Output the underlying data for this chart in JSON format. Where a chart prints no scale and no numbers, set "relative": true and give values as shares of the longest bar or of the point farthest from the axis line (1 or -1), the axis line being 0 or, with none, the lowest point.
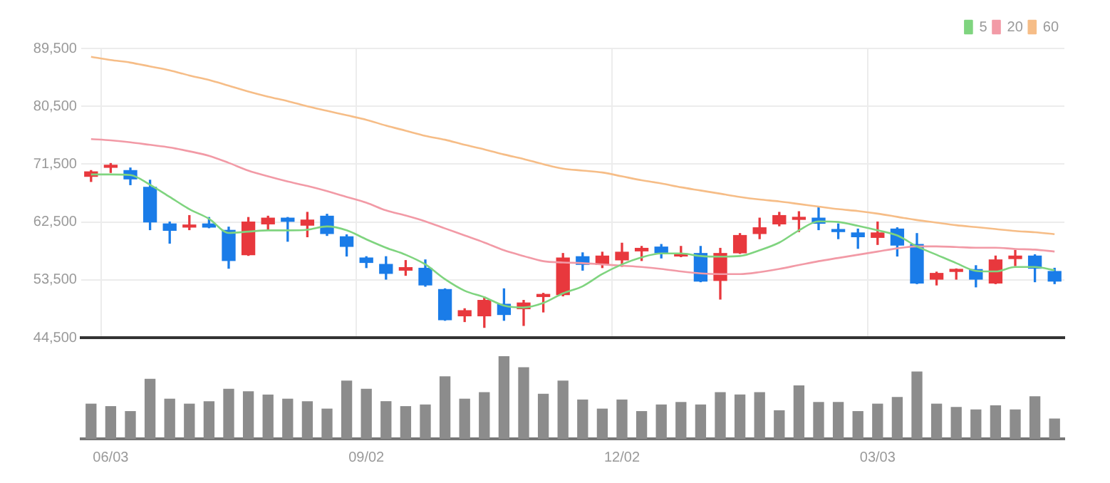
{
  "chart_data": [
    {
      "type": "candlestick",
      "categories": [
        null,
        null,
        null,
        null,
        null,
        null,
        null,
        null,
        null,
        null,
        null,
        null,
        null,
        null,
        null,
        null,
        null,
        null,
        null,
        null,
        null,
        null,
        null,
        null,
        null,
        null,
        null,
        null,
        null,
        null,
        null,
        null,
        null,
        null,
        null,
        null,
        null,
        null,
        null,
        null,
        null,
        null,
        null,
        null,
        null,
        null,
        null,
        null,
        null,
        null
      ],
      "ohlc": [
        [
          69600,
          70500,
          68800,
          70300
        ],
        [
          71000,
          71600,
          70200,
          71300
        ],
        [
          70500,
          70900,
          68300,
          69200
        ],
        [
          67900,
          69000,
          61300,
          62500
        ],
        [
          62200,
          62500,
          59200,
          61200
        ],
        [
          61700,
          63500,
          61300,
          62000
        ],
        [
          62200,
          63200,
          61600,
          61700
        ],
        [
          61200,
          61700,
          55300,
          56500
        ],
        [
          57400,
          63200,
          57300,
          62500
        ],
        [
          62200,
          63400,
          61200,
          63100
        ],
        [
          63100,
          63200,
          59500,
          62600
        ],
        [
          62000,
          64000,
          60200,
          62800
        ],
        [
          63400,
          63700,
          60400,
          60700
        ],
        [
          60200,
          60500,
          57200,
          58700
        ],
        [
          56900,
          57100,
          55400,
          56200
        ],
        [
          55900,
          57100,
          53600,
          54500
        ],
        [
          55000,
          56500,
          54200,
          55400
        ],
        [
          55300,
          56600,
          52500,
          52700
        ],
        [
          52000,
          52100,
          47200,
          47300
        ],
        [
          47900,
          49000,
          47000,
          48700
        ],
        [
          47900,
          50800,
          46100,
          50300
        ],
        [
          49700,
          52100,
          47200,
          48100
        ],
        [
          49000,
          50300,
          46400,
          49900
        ],
        [
          50900,
          51400,
          48500,
          51200
        ],
        [
          51200,
          57600,
          51000,
          56900
        ],
        [
          57100,
          57700,
          55000,
          55900
        ],
        [
          55900,
          57800,
          55400,
          57200
        ],
        [
          56600,
          59200,
          55600,
          57800
        ],
        [
          58000,
          58700,
          56500,
          58400
        ],
        [
          58600,
          59000,
          56900,
          57700
        ],
        [
          57200,
          58700,
          57100,
          57500
        ],
        [
          57600,
          58700,
          53200,
          53300
        ],
        [
          53400,
          58400,
          50500,
          57600
        ],
        [
          57700,
          60700,
          57600,
          60400
        ],
        [
          60700,
          63100,
          59900,
          61600
        ],
        [
          62200,
          64000,
          61900,
          63500
        ],
        [
          62900,
          64100,
          61000,
          63200
        ],
        [
          63100,
          64900,
          61300,
          62300
        ],
        [
          61300,
          62200,
          59900,
          61000
        ],
        [
          60800,
          61400,
          58400,
          60200
        ],
        [
          60100,
          62500,
          59000,
          60800
        ],
        [
          61400,
          61600,
          57200,
          58900
        ],
        [
          59000,
          60700,
          52900,
          53000
        ],
        [
          53600,
          54700,
          52700,
          54500
        ],
        [
          54800,
          55200,
          53600,
          55100
        ],
        [
          55100,
          55700,
          52400,
          53600
        ],
        [
          53000,
          57200,
          52900,
          56600
        ],
        [
          56800,
          58100,
          55700,
          57200
        ],
        [
          57200,
          57400,
          53200,
          55300
        ],
        [
          54800,
          55300,
          52900,
          53300
        ]
      ],
      "colors": [
        "#e8383d",
        "#e8383d",
        "#1a7ce8",
        "#1a7ce8",
        "#1a7ce8",
        "#e8383d",
        "#1a7ce8",
        "#1a7ce8",
        "#e8383d",
        "#e8383d",
        "#1a7ce8",
        "#e8383d",
        "#1a7ce8",
        "#1a7ce8",
        "#1a7ce8",
        "#1a7ce8",
        "#e8383d",
        "#1a7ce8",
        "#1a7ce8",
        "#e8383d",
        "#e8383d",
        "#1a7ce8",
        "#e8383d",
        "#e8383d",
        "#e8383d",
        "#1a7ce8",
        "#e8383d",
        "#e8383d",
        "#e8383d",
        "#1a7ce8",
        "#e8383d",
        "#1a7ce8",
        "#e8383d",
        "#e8383d",
        "#e8383d",
        "#e8383d",
        "#e8383d",
        "#1a7ce8",
        "#1a7ce8",
        "#1a7ce8",
        "#e8383d",
        "#1a7ce8",
        "#1a7ce8",
        "#e8383d",
        "#e8383d",
        "#1a7ce8",
        "#e8383d",
        "#e8383d",
        "#1a7ce8",
        "#1a7ce8"
      ],
      "series": [
        {
          "name": "5",
          "type": "line",
          "color": "#7fd47f",
          "values": [
            69900,
            69900,
            69800,
            68300,
            66400,
            64500,
            63000,
            60800,
            61000,
            61200,
            61200,
            61300,
            61800,
            61200,
            59800,
            58500,
            57400,
            55900,
            53600,
            51800,
            50800,
            49500,
            49200,
            49900,
            51400,
            52500,
            54400,
            55900,
            57000,
            57600,
            57600,
            57200,
            57100,
            57200,
            58100,
            59300,
            61200,
            62600,
            62500,
            61900,
            61200,
            60400,
            58700,
            57400,
            56100,
            54900,
            54800,
            55500,
            55500,
            55000
          ]
        },
        {
          "name": "20",
          "type": "line",
          "color": "#f29aa6",
          "values": [
            75400,
            75200,
            74900,
            74500,
            74100,
            73500,
            72800,
            71700,
            70500,
            69600,
            68800,
            68100,
            67300,
            66400,
            65500,
            64300,
            63500,
            62600,
            61500,
            60400,
            59300,
            58100,
            57200,
            56400,
            56200,
            56100,
            55900,
            55700,
            55500,
            55200,
            54800,
            54500,
            54400,
            54400,
            54700,
            55200,
            55800,
            56400,
            56900,
            57400,
            57900,
            58400,
            58700,
            58700,
            58600,
            58500,
            58500,
            58300,
            58200,
            57900
          ]
        },
        {
          "name": "60",
          "type": "line",
          "color": "#f6bd87",
          "values": [
            88200,
            87700,
            87300,
            86700,
            86100,
            85300,
            84600,
            83700,
            82800,
            82000,
            81300,
            80500,
            79800,
            79100,
            78400,
            77500,
            76700,
            75900,
            75300,
            74500,
            73800,
            73000,
            72300,
            71500,
            70800,
            70500,
            70200,
            69600,
            69000,
            68500,
            67900,
            67400,
            66900,
            66400,
            66000,
            65700,
            65300,
            64900,
            64500,
            64200,
            63800,
            63300,
            62800,
            62400,
            62000,
            61700,
            61400,
            61100,
            60900,
            60600
          ]
        }
      ],
      "ylim": [
        44500,
        89500
      ],
      "yticks": [
        {
          "value": 44500,
          "label": "44,500"
        },
        {
          "value": 53500,
          "label": "53,500"
        },
        {
          "value": 62500,
          "label": "62,500"
        },
        {
          "value": 71500,
          "label": "71,500"
        },
        {
          "value": 80500,
          "label": "80,500"
        },
        {
          "value": 89500,
          "label": "89,500"
        }
      ],
      "grid": true,
      "legend": "top right",
      "tick_labels": "y",
      "marker": "none"
    },
    {
      "type": "bar",
      "categories": [
        null,
        "06/03",
        null,
        null,
        null,
        null,
        null,
        null,
        null,
        null,
        null,
        null,
        null,
        null,
        "09/02",
        null,
        null,
        null,
        null,
        null,
        null,
        null,
        null,
        null,
        null,
        null,
        null,
        "12/02",
        null,
        null,
        null,
        null,
        null,
        null,
        null,
        null,
        null,
        null,
        null,
        null,
        "03/03",
        null,
        null,
        null,
        null,
        null,
        null,
        null,
        null,
        null
      ],
      "values": [
        0.42,
        0.39,
        0.33,
        0.72,
        0.48,
        0.42,
        0.45,
        0.6,
        0.57,
        0.53,
        0.48,
        0.45,
        0.36,
        0.7,
        0.6,
        0.45,
        0.39,
        0.41,
        0.75,
        0.48,
        0.56,
        1,
        0.86,
        0.54,
        0.7,
        0.47,
        0.36,
        0.47,
        0.33,
        0.41,
        0.44,
        0.41,
        0.56,
        0.53,
        0.56,
        0.34,
        0.64,
        0.44,
        0.44,
        0.33,
        0.42,
        0.5,
        0.81,
        0.42,
        0.38,
        0.35,
        0.4,
        0.35,
        0.51,
        0.24
      ],
      "color": "#8c8c8c",
      "relative": true,
      "tick_labels": "x"
    }
  ]
}
